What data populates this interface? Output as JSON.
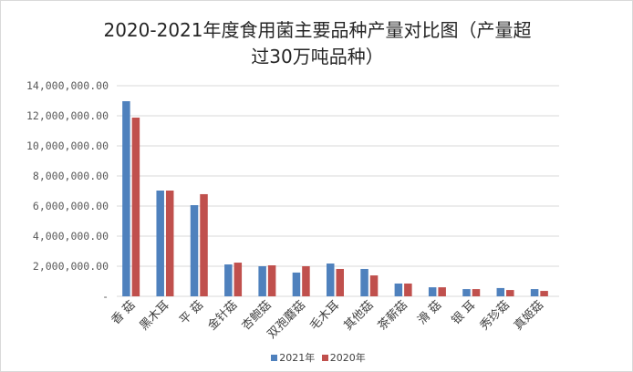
{
  "chart_data": {
    "type": "bar",
    "title": "2020-2021年度食用菌主要品种产量对比图（产量超过30万吨品种）",
    "title_lines": [
      "2020-2021年度食用菌主要品种产量对比图（产量超",
      "过30万吨品种）"
    ],
    "categories": [
      "香 菇",
      "黑木耳",
      "平 菇",
      "金针菇",
      "杏鲍菇",
      "双孢蘑菇",
      "毛木耳",
      "其他菇",
      "茶薪菇",
      "滑 菇",
      "银 耳",
      "秀珍菇",
      "真姬菇"
    ],
    "series": [
      {
        "name": "2021年",
        "color": "#4f81bd",
        "values": [
          12970000,
          7030000,
          6060000,
          2120000,
          2000000,
          1580000,
          2180000,
          1820000,
          850000,
          600000,
          480000,
          550000,
          480000
        ]
      },
      {
        "name": "2020年",
        "color": "#c0504d",
        "values": [
          11880000,
          7030000,
          6790000,
          2240000,
          2060000,
          2000000,
          1820000,
          1390000,
          850000,
          600000,
          480000,
          420000,
          360000
        ]
      }
    ],
    "ylim": [
      0,
      14000000
    ],
    "yticks": [
      0,
      2000000,
      4000000,
      6000000,
      8000000,
      10000000,
      12000000,
      14000000
    ],
    "ytick_labels": [
      "-",
      "2,000,000.00",
      "4,000,000.00",
      "6,000,000.00",
      "8,000,000.00",
      "10,000,000.00",
      "12,000,000.00",
      "14,000,000.00"
    ],
    "grid": true,
    "legend_position": "bottom",
    "xlabel": "",
    "ylabel": ""
  }
}
